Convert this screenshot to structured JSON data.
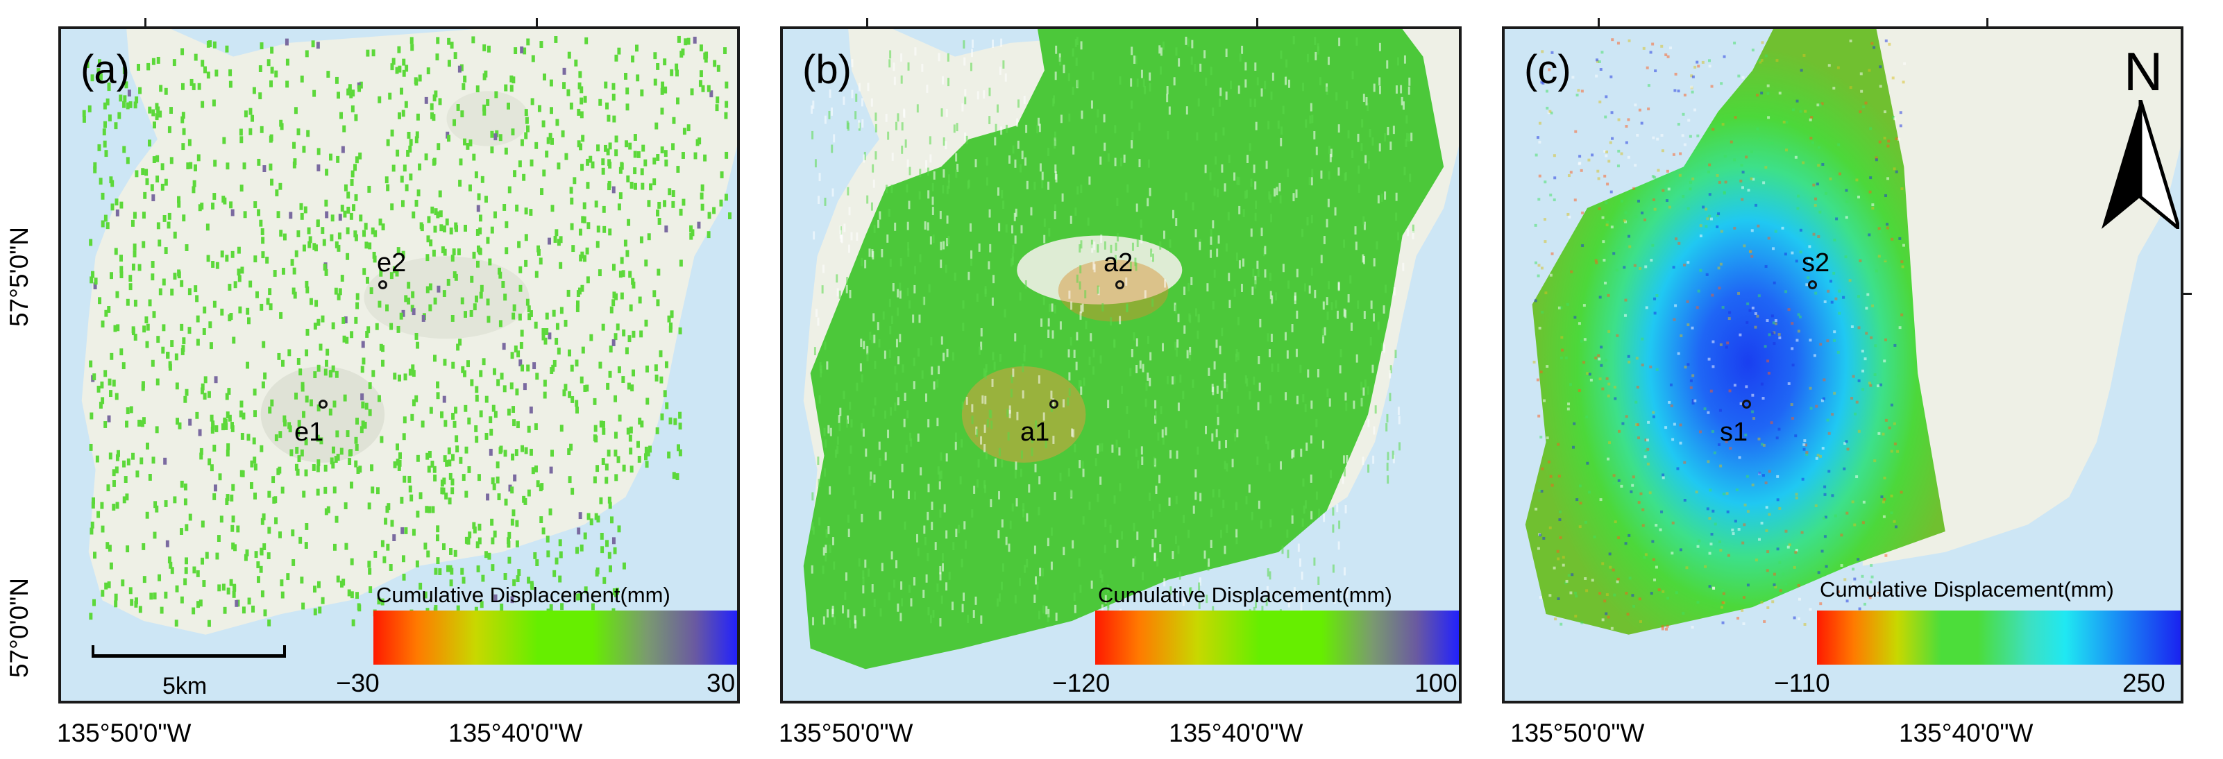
{
  "colors": {
    "water": "#cde6f5",
    "land": "#eef0e6",
    "panel_a_points": "#5cd83a",
    "panel_b_points": "#4cc83a",
    "frame": "#1a1a1a"
  },
  "axes": {
    "lat_labels": [
      "57°5'0\"N",
      "57°0'0\"N"
    ],
    "lon_labels": [
      "135°50'0\"W",
      "135°40'0\"W"
    ]
  },
  "panels": [
    {
      "label": "(a)",
      "points": [
        {
          "id": "e2"
        },
        {
          "id": "e1"
        }
      ],
      "legend": {
        "title": "Cumulative Displacement(mm)",
        "min": "−30",
        "max": "30"
      },
      "scale_bar": "5km"
    },
    {
      "label": "(b)",
      "points": [
        {
          "id": "a2"
        },
        {
          "id": "a1"
        }
      ],
      "legend": {
        "title": "Cumulative Displacement(mm)",
        "min": "−120",
        "max": "100"
      }
    },
    {
      "label": "(c)",
      "points": [
        {
          "id": "s2"
        },
        {
          "id": "s1"
        }
      ],
      "legend": {
        "title": "Cumulative Displacement(mm)",
        "min": "−110",
        "max": "250"
      },
      "north_arrow": "N"
    }
  ]
}
